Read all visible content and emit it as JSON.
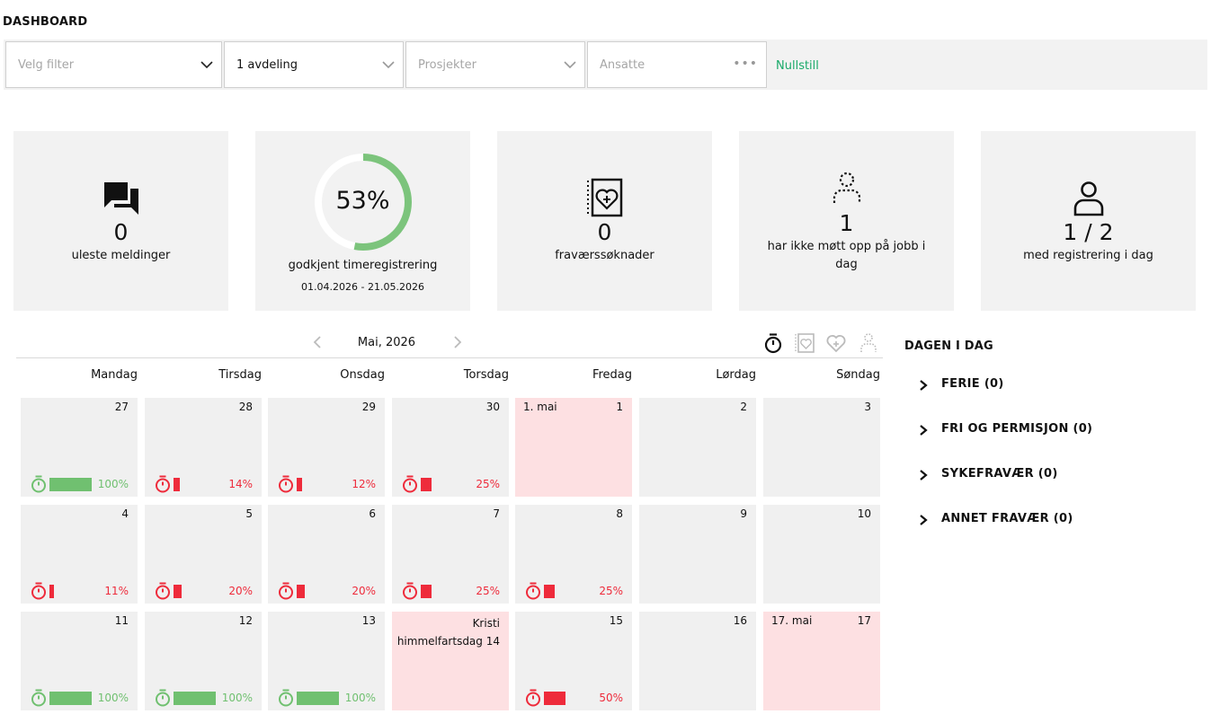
{
  "page_title": "DASHBOARD",
  "filters": {
    "filter_placeholder": "Velg filter",
    "department_value": "1 avdeling",
    "projects_placeholder": "Prosjekter",
    "employees_placeholder": "Ansatte",
    "reset_label": "Nullstill"
  },
  "cards": {
    "messages": {
      "value": "0",
      "label": "uleste meldinger"
    },
    "approved": {
      "percent_text": "53%",
      "percent": 0.53,
      "label": "godkjent timeregistrering",
      "date_range": "01.04.2026 - 21.05.2026"
    },
    "absence_requests": {
      "value": "0",
      "label": "fraværssøknader"
    },
    "no_show": {
      "value": "1",
      "label": "har ikke møtt opp på jobb i dag"
    },
    "registered": {
      "value": "1 / 2",
      "label": "med registrering i dag"
    }
  },
  "calendar": {
    "month_label": "Mai, 2026",
    "weekdays": [
      "Mandag",
      "Tirsdag",
      "Onsdag",
      "Torsdag",
      "Fredag",
      "Lørdag",
      "Søndag"
    ],
    "weeks": [
      [
        {
          "day": "27",
          "pct": "100%",
          "fill": 1.0,
          "status": "green"
        },
        {
          "day": "28",
          "pct": "14%",
          "fill": 0.14,
          "status": "red"
        },
        {
          "day": "29",
          "pct": "12%",
          "fill": 0.12,
          "status": "red"
        },
        {
          "day": "30",
          "pct": "25%",
          "fill": 0.25,
          "status": "red"
        },
        {
          "day": "1",
          "label": "1. mai",
          "holiday": true
        },
        {
          "day": "2"
        },
        {
          "day": "3"
        }
      ],
      [
        {
          "day": "4",
          "pct": "11%",
          "fill": 0.11,
          "status": "red"
        },
        {
          "day": "5",
          "pct": "20%",
          "fill": 0.2,
          "status": "red"
        },
        {
          "day": "6",
          "pct": "20%",
          "fill": 0.2,
          "status": "red"
        },
        {
          "day": "7",
          "pct": "25%",
          "fill": 0.25,
          "status": "red"
        },
        {
          "day": "8",
          "pct": "25%",
          "fill": 0.25,
          "status": "red"
        },
        {
          "day": "9"
        },
        {
          "day": "10"
        }
      ],
      [
        {
          "day": "11",
          "pct": "100%",
          "fill": 1.0,
          "status": "green"
        },
        {
          "day": "12",
          "pct": "100%",
          "fill": 1.0,
          "status": "green"
        },
        {
          "day": "13",
          "pct": "100%",
          "fill": 1.0,
          "status": "green"
        },
        {
          "day": "14",
          "multilabel": "Kristi himmelfartsdag 14",
          "holiday": true
        },
        {
          "day": "15",
          "pct": "50%",
          "fill": 0.5,
          "status": "red"
        },
        {
          "day": "16"
        },
        {
          "day": "17",
          "label": "17. mai",
          "holiday": true
        }
      ]
    ],
    "tools": [
      "stopwatch-icon",
      "absence-request-icon",
      "heart-icon",
      "no-show-icon"
    ]
  },
  "today_panel": {
    "title": "DAGEN I DAG",
    "items": [
      "FERIE (0)",
      "FRI OG PERMISJON (0)",
      "SYKEFRAVÆR (0)",
      "ANNET FRAVÆR (0)"
    ]
  },
  "colors": {
    "green": "#70c070",
    "red": "#ee2b3b",
    "holiday_bg": "#fde0e2",
    "card_bg": "#f2f2f2",
    "link": "#1aaa6a"
  }
}
